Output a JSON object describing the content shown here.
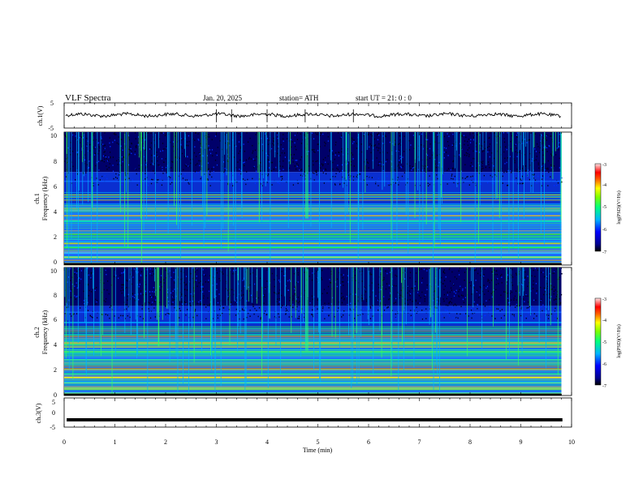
{
  "header": {
    "title": "VLF  Spectra",
    "date": "Jan. 20, 2025",
    "station": "station= ATH",
    "start": "start  UT  =   21: 0   : 0"
  },
  "chart_data": [
    {
      "type": "line",
      "panel": "ch1-waveform",
      "ylabel": "ch.1(V)",
      "yticks": [
        "5",
        "-5"
      ],
      "ylim": [
        -5,
        5
      ],
      "xlim": [
        0,
        10
      ],
      "level_v": 0.2
    },
    {
      "type": "heatmap",
      "panel": "ch1-spectrogram",
      "ylabel": [
        "ch.1",
        "Frequency  (kHz)"
      ],
      "yticks": [
        "0",
        "2",
        "4",
        "6",
        "8",
        "10"
      ],
      "ylim": [
        0,
        10
      ],
      "xlim": [
        0,
        9.8
      ],
      "colorbar": {
        "label": "log(PSD)(V²/Hz)",
        "ticks": [
          "-3",
          "-4",
          "-5",
          "-6",
          "-7"
        ],
        "range": [
          -7,
          -3
        ]
      },
      "bands_khz": [
        {
          "f": 0.15,
          "c": "#c8c8c8"
        },
        {
          "f": 0.35,
          "c": "#d06060"
        },
        {
          "f": 0.6,
          "c": "#9be09b"
        },
        {
          "f": 0.9,
          "c": "#2cc8ff"
        },
        {
          "f": 1.0,
          "c": "#c060c0"
        },
        {
          "f": 1.3,
          "c": "#30ff30"
        },
        {
          "f": 1.65,
          "c": "#ffd500"
        },
        {
          "f": 1.75,
          "c": "#00b4ff"
        },
        {
          "f": 2.1,
          "c": "#10e040"
        },
        {
          "f": 2.3,
          "c": "#10e040"
        },
        {
          "f": 3.3,
          "c": "#00ffb0"
        },
        {
          "f": 3.7,
          "c": "#ffd500"
        },
        {
          "f": 4.1,
          "c": "#18b8ff"
        },
        {
          "f": 4.6,
          "c": "#005bff"
        },
        {
          "f": 6.3,
          "c": "#1060ff"
        }
      ]
    },
    {
      "type": "heatmap",
      "panel": "ch2-spectrogram",
      "ylabel": [
        "ch.2",
        "Frequency  (kHz)"
      ],
      "yticks": [
        "0",
        "2",
        "4",
        "6",
        "8",
        "10"
      ],
      "ylim": [
        0,
        10
      ],
      "xlim": [
        0,
        9.8
      ],
      "colorbar": {
        "label": "log(PSD)(V²/Hz)",
        "ticks": [
          "-3",
          "-4",
          "-5",
          "-6",
          "-7"
        ],
        "range": [
          -7,
          -3
        ]
      },
      "bands_khz": [
        {
          "f": 0.2,
          "c": "#80ff80"
        },
        {
          "f": 0.5,
          "c": "#c0ff00"
        },
        {
          "f": 1.0,
          "c": "#40ffa0"
        },
        {
          "f": 1.4,
          "c": "#ffff00"
        },
        {
          "f": 1.7,
          "c": "#30ff30"
        },
        {
          "f": 2.1,
          "c": "#ff2000"
        },
        {
          "f": 2.3,
          "c": "#e08000"
        },
        {
          "f": 2.8,
          "c": "#40ff60"
        },
        {
          "f": 3.4,
          "c": "#30ff40"
        },
        {
          "f": 4.1,
          "c": "#ffd000"
        },
        {
          "f": 4.6,
          "c": "#ff3000"
        },
        {
          "f": 5.2,
          "c": "#1060ff"
        },
        {
          "f": 5.7,
          "c": "#00b0ff"
        },
        {
          "f": 6.5,
          "c": "#1060ff"
        }
      ]
    },
    {
      "type": "line",
      "panel": "ch3-waveform",
      "ylabel": "ch.3(V)",
      "yticks": [
        "5",
        "0",
        "-5"
      ],
      "ylim": [
        -5,
        5
      ],
      "level_v": -2.5,
      "xlabel": "Time  (min)",
      "xticks": [
        "0",
        "1",
        "2",
        "3",
        "4",
        "5",
        "6",
        "7",
        "8",
        "9",
        "10"
      ],
      "xlim": [
        0,
        10
      ]
    }
  ]
}
